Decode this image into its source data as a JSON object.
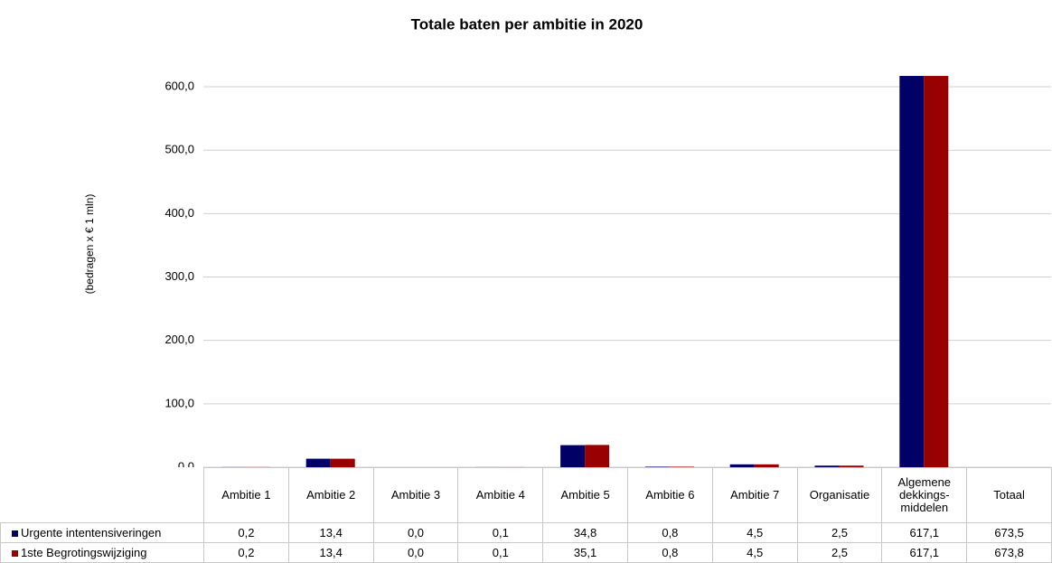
{
  "chart_data": {
    "type": "bar",
    "title": "Totale baten per ambitie in 2020",
    "y_label": "(bedragen x € 1 mln)",
    "categories": [
      "Ambitie 1",
      "Ambitie 2",
      "Ambitie 3",
      "Ambitie 4",
      "Ambitie 5",
      "Ambitie 6",
      "Ambitie 7",
      "Organisatie",
      "Algemene dekkings-middelen",
      "Totaal"
    ],
    "series": [
      {
        "name": "Urgente intentensiveringen",
        "color": "#000066",
        "values": [
          0.2,
          13.4,
          0.0,
          0.1,
          34.8,
          0.8,
          4.5,
          2.5,
          617.1,
          673.5
        ],
        "value_labels": [
          "0,2",
          "13,4",
          "0,0",
          "0,1",
          "34,8",
          "0,8",
          "4,5",
          "2,5",
          "617,1",
          "673,5"
        ]
      },
      {
        "name": "1ste Begrotingswijziging",
        "color": "#990000",
        "values": [
          0.2,
          13.4,
          0.0,
          0.1,
          35.1,
          0.8,
          4.5,
          2.5,
          617.1,
          673.8
        ],
        "value_labels": [
          "0,2",
          "13,4",
          "0,0",
          "0,1",
          "35,1",
          "0,8",
          "4,5",
          "2,5",
          "617,1",
          "673,8"
        ]
      }
    ],
    "ylim": [
      0,
      620
    ],
    "yticks": [
      {
        "value": 0,
        "label": "0,0"
      },
      {
        "value": 100,
        "label": "100,0"
      },
      {
        "value": 200,
        "label": "200,0"
      },
      {
        "value": 300,
        "label": "300,0"
      },
      {
        "value": 400,
        "label": "400,0"
      },
      {
        "value": 500,
        "label": "500,0"
      },
      {
        "value": 600,
        "label": "600,0"
      }
    ],
    "grid": true
  }
}
